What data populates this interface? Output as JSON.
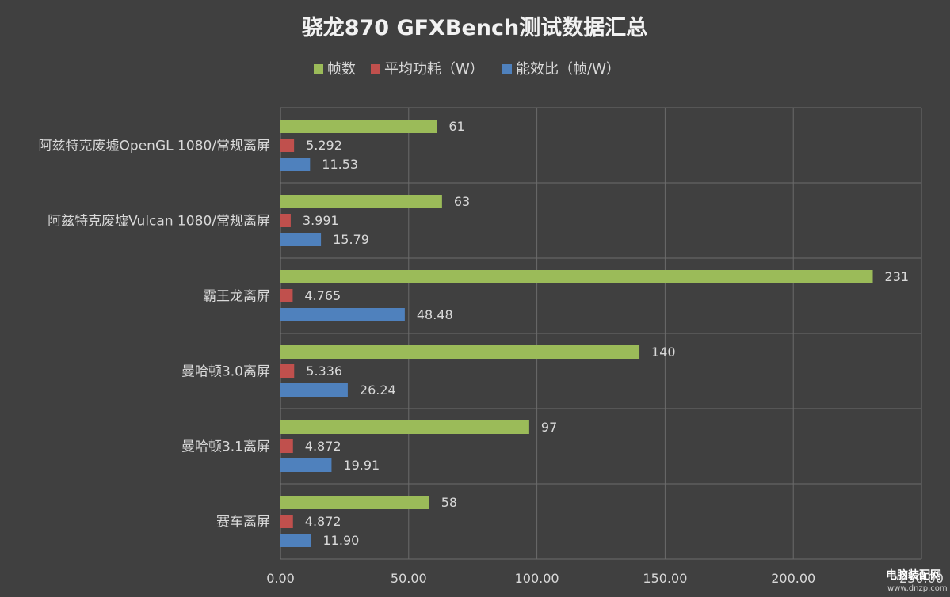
{
  "chart_data": {
    "type": "bar",
    "orientation": "horizontal",
    "title": "骁龙870 GFXBench测试数据汇总",
    "categories": [
      "阿兹特克废墟OpenGL 1080/常规离屏",
      "阿兹特克废墟Vulcan 1080/常规离屏",
      "霸王龙离屏",
      "曼哈顿3.0离屏",
      "曼哈顿3.1离屏",
      "赛车离屏"
    ],
    "series": [
      {
        "name": "帧数",
        "color": "#9bbb59",
        "values": [
          61,
          63,
          231,
          140,
          97,
          58
        ],
        "labels": [
          "61",
          "63",
          "231",
          "140",
          "97",
          "58"
        ]
      },
      {
        "name": "平均功耗（W）",
        "color": "#c0504d",
        "values": [
          5.292,
          3.991,
          4.765,
          5.336,
          4.872,
          4.872
        ],
        "labels": [
          "5.292",
          "3.991",
          "4.765",
          "5.336",
          "4.872",
          "4.872"
        ]
      },
      {
        "name": "能效比（帧/W）",
        "color": "#4f81bd",
        "values": [
          11.53,
          15.79,
          48.48,
          26.24,
          19.91,
          11.9
        ],
        "labels": [
          "11.53",
          "15.79",
          "48.48",
          "26.24",
          "19.91",
          "11.90"
        ]
      }
    ],
    "xlim": [
      0,
      250
    ],
    "xticks": [
      0,
      50,
      100,
      150,
      200,
      250
    ],
    "xtick_labels": [
      "0.00",
      "50.00",
      "100.00",
      "150.00",
      "200.00",
      "250.00"
    ],
    "grid": true,
    "legend_position": "top-center",
    "background": "#404040"
  },
  "watermark": {
    "text": "电脑装配网",
    "url_text": "www.dnzp.com"
  }
}
